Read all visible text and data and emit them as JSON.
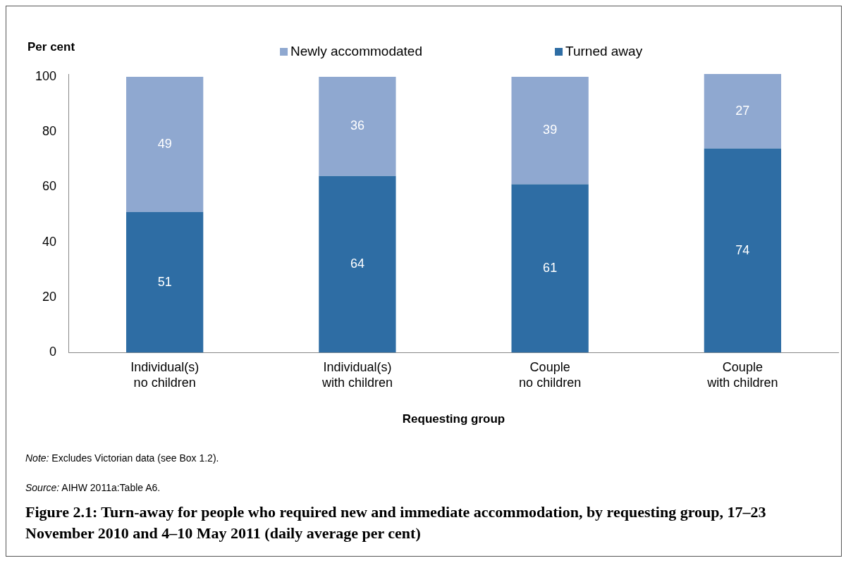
{
  "chart_data": {
    "type": "bar",
    "stacked": true,
    "title": "Figure 2.1: Turn-away for people who required new and immediate accommodation, by requesting group, 17–23 November 2010 and 4–10 May 2011 (daily average per cent)",
    "ylabel": "Per cent",
    "xlabel": "Requesting group",
    "categories": [
      "Individual(s) no children",
      "Individual(s) with children",
      "Couple no children",
      "Couple with children"
    ],
    "series": [
      {
        "name": "Turned away",
        "color": "#2e6da4",
        "values": [
          51,
          64,
          61,
          74
        ]
      },
      {
        "name": "Newly accommodated",
        "color": "#8fa8d0",
        "values": [
          49,
          36,
          39,
          27
        ]
      }
    ],
    "ylim": [
      0,
      101
    ],
    "yticks": [
      0,
      20,
      40,
      60,
      80,
      100
    ],
    "grid": false,
    "legend": "top",
    "data_labels": true,
    "annotations": [
      "Note: Excludes Victorian data (see Box 1.2).",
      "Source: AIHW 2011a:Table A6."
    ]
  }
}
